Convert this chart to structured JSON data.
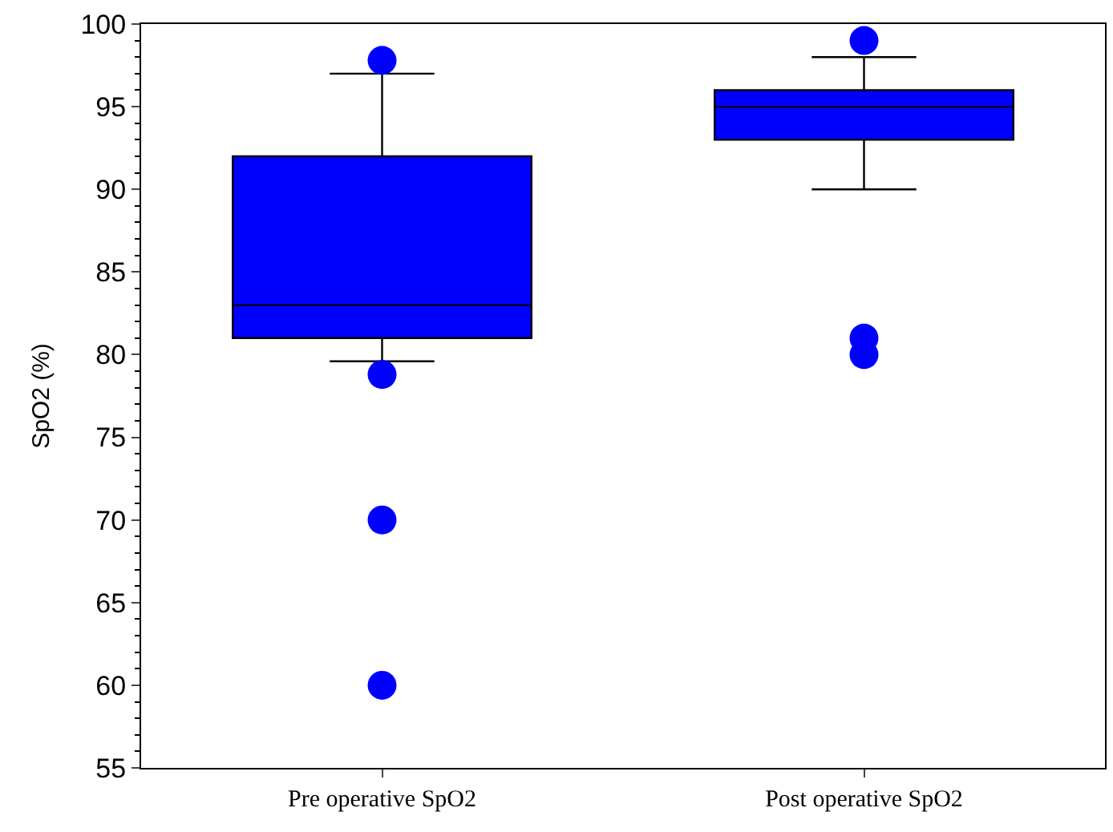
{
  "chart_data": {
    "type": "box",
    "ylabel": "SpO2 (%)",
    "categories": [
      "Pre operative SpO2",
      "Post operative SpO2"
    ],
    "boxes": [
      {
        "low": 79.6,
        "q1": 81,
        "median": 83,
        "q3": 92,
        "high": 97,
        "outliers": [
          97.8,
          78.8,
          70,
          60
        ]
      },
      {
        "low": 90,
        "q1": 93,
        "median": 95,
        "q3": 96,
        "high": 98,
        "outliers": [
          99,
          81,
          80
        ]
      }
    ],
    "color": "#0000ff",
    "ylim": [
      55,
      100
    ],
    "yticks": [
      55,
      60,
      65,
      70,
      75,
      80,
      85,
      90,
      95,
      100
    ]
  }
}
